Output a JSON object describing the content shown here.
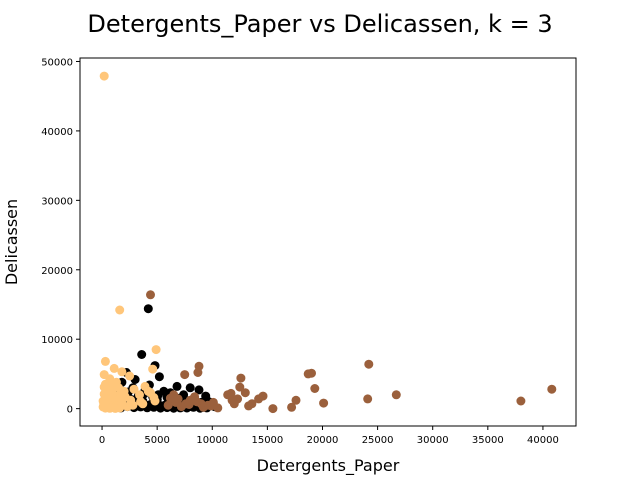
{
  "chart_data": {
    "type": "scatter",
    "title": "Detergents_Paper vs Delicassen, k = 3",
    "xlabel": "Detergents_Paper",
    "ylabel": "Delicassen",
    "xlim": [
      -2000,
      43000
    ],
    "ylim": [
      -2500,
      50500
    ],
    "xticks": [
      0,
      5000,
      10000,
      15000,
      20000,
      25000,
      30000,
      35000,
      40000
    ],
    "yticks": [
      0,
      10000,
      20000,
      30000,
      40000,
      50000
    ],
    "grid": false,
    "legend": "none",
    "series": [
      {
        "color": "#000000",
        "points": [
          [
            4200,
            14400
          ],
          [
            3600,
            7800
          ],
          [
            4800,
            6200
          ],
          [
            2200,
            5200
          ],
          [
            5200,
            4600
          ],
          [
            3000,
            4200
          ],
          [
            1800,
            3800
          ],
          [
            6800,
            3200
          ],
          [
            8000,
            3000
          ],
          [
            8800,
            2700
          ],
          [
            4300,
            3400
          ],
          [
            2800,
            3000
          ],
          [
            1300,
            2800
          ],
          [
            5600,
            2500
          ],
          [
            3900,
            2600
          ],
          [
            6200,
            2300
          ],
          [
            7400,
            2000
          ],
          [
            9400,
            1800
          ],
          [
            900,
            2200
          ],
          [
            2400,
            2400
          ],
          [
            3300,
            1900
          ],
          [
            4600,
            1700
          ],
          [
            5900,
            1600
          ],
          [
            7000,
            1500
          ],
          [
            8300,
            1400
          ],
          [
            9700,
            1000
          ],
          [
            10200,
            300
          ],
          [
            1500,
            1500
          ],
          [
            2700,
            1300
          ],
          [
            3700,
            1100
          ],
          [
            4900,
            1000
          ],
          [
            6100,
            900
          ],
          [
            7300,
            800
          ],
          [
            8500,
            700
          ],
          [
            600,
            900
          ],
          [
            1900,
            800
          ],
          [
            3100,
            700
          ],
          [
            4400,
            600
          ],
          [
            5700,
            500
          ],
          [
            6900,
            400
          ],
          [
            8100,
            300
          ],
          [
            9200,
            200
          ],
          [
            1100,
            400
          ],
          [
            2300,
            300
          ],
          [
            3500,
            250
          ],
          [
            4700,
            200
          ],
          [
            5900,
            150
          ],
          [
            7100,
            100
          ],
          [
            8300,
            200
          ],
          [
            9500,
            100
          ],
          [
            1700,
            100
          ],
          [
            2900,
            150
          ],
          [
            4100,
            120
          ],
          [
            5300,
            80
          ],
          [
            6500,
            60
          ],
          [
            7700,
            90
          ],
          [
            8900,
            70
          ],
          [
            2000,
            1900
          ],
          [
            3400,
            1600
          ],
          [
            5000,
            1300
          ],
          [
            6600,
            1200
          ],
          [
            7800,
            1100
          ],
          [
            9000,
            900
          ],
          [
            2600,
            600
          ],
          [
            4000,
            500
          ],
          [
            5400,
            400
          ],
          [
            6800,
            700
          ],
          [
            1400,
            600
          ],
          [
            3800,
            2100
          ],
          [
            5100,
            2000
          ]
        ]
      },
      {
        "color": "#9b603c",
        "points": [
          [
            4400,
            16400
          ],
          [
            40800,
            2800
          ],
          [
            38000,
            1100
          ],
          [
            26700,
            2000
          ],
          [
            24200,
            6400
          ],
          [
            24100,
            1400
          ],
          [
            20100,
            800
          ],
          [
            19300,
            2900
          ],
          [
            19000,
            5100
          ],
          [
            18700,
            5000
          ],
          [
            17600,
            1200
          ],
          [
            17200,
            200
          ],
          [
            15500,
            0
          ],
          [
            14600,
            1800
          ],
          [
            14200,
            1400
          ],
          [
            13600,
            700
          ],
          [
            13300,
            400
          ],
          [
            12600,
            4400
          ],
          [
            12500,
            3100
          ],
          [
            12300,
            1400
          ],
          [
            12000,
            700
          ],
          [
            11700,
            2200
          ],
          [
            11400,
            2000
          ],
          [
            10100,
            900
          ],
          [
            9600,
            500
          ],
          [
            9200,
            200
          ],
          [
            9000,
            700
          ],
          [
            8800,
            6100
          ],
          [
            8700,
            5200
          ],
          [
            8400,
            1700
          ],
          [
            8000,
            1200
          ],
          [
            7600,
            700
          ],
          [
            7500,
            4900
          ],
          [
            7200,
            300
          ],
          [
            6900,
            1400
          ],
          [
            6700,
            900
          ],
          [
            6500,
            2000
          ],
          [
            6200,
            1500
          ],
          [
            6000,
            500
          ],
          [
            11800,
            1200
          ],
          [
            13000,
            2300
          ],
          [
            10500,
            100
          ],
          [
            9900,
            400
          ],
          [
            7900,
            600
          ],
          [
            8600,
            1000
          ]
        ]
      },
      {
        "color": "#ffc67a",
        "points": [
          [
            200,
            47900
          ],
          [
            1600,
            14200
          ],
          [
            4900,
            8500
          ],
          [
            300,
            6800
          ],
          [
            1100,
            5800
          ],
          [
            4600,
            5700
          ],
          [
            1800,
            5300
          ],
          [
            200,
            4900
          ],
          [
            2500,
            4700
          ],
          [
            700,
            4300
          ],
          [
            1300,
            3800
          ],
          [
            3900,
            3200
          ],
          [
            200,
            3100
          ],
          [
            1500,
            3000
          ],
          [
            2900,
            2800
          ],
          [
            500,
            2700
          ],
          [
            4200,
            2500
          ],
          [
            900,
            2300
          ],
          [
            1700,
            2200
          ],
          [
            200,
            2100
          ],
          [
            3400,
            2000
          ],
          [
            700,
            1900
          ],
          [
            1200,
            1800
          ],
          [
            2100,
            1700
          ],
          [
            4700,
            1600
          ],
          [
            300,
            1500
          ],
          [
            800,
            1400
          ],
          [
            1500,
            1300
          ],
          [
            2600,
            1200
          ],
          [
            100,
            1100
          ],
          [
            500,
            1000
          ],
          [
            1000,
            900
          ],
          [
            1800,
            800
          ],
          [
            3700,
            700
          ],
          [
            200,
            600
          ],
          [
            600,
            500
          ],
          [
            1300,
            400
          ],
          [
            2300,
            300
          ],
          [
            100,
            250
          ],
          [
            400,
            200
          ],
          [
            900,
            150
          ],
          [
            1600,
            100
          ],
          [
            300,
            80
          ],
          [
            700,
            50
          ],
          [
            1200,
            30
          ],
          [
            4800,
            1100
          ],
          [
            4400,
            2300
          ],
          [
            2000,
            2500
          ],
          [
            300,
            3500
          ],
          [
            1000,
            3300
          ],
          [
            3500,
            1000
          ],
          [
            2800,
            500
          ],
          [
            150,
            700
          ],
          [
            450,
            1300
          ],
          [
            850,
            2600
          ]
        ]
      }
    ]
  }
}
